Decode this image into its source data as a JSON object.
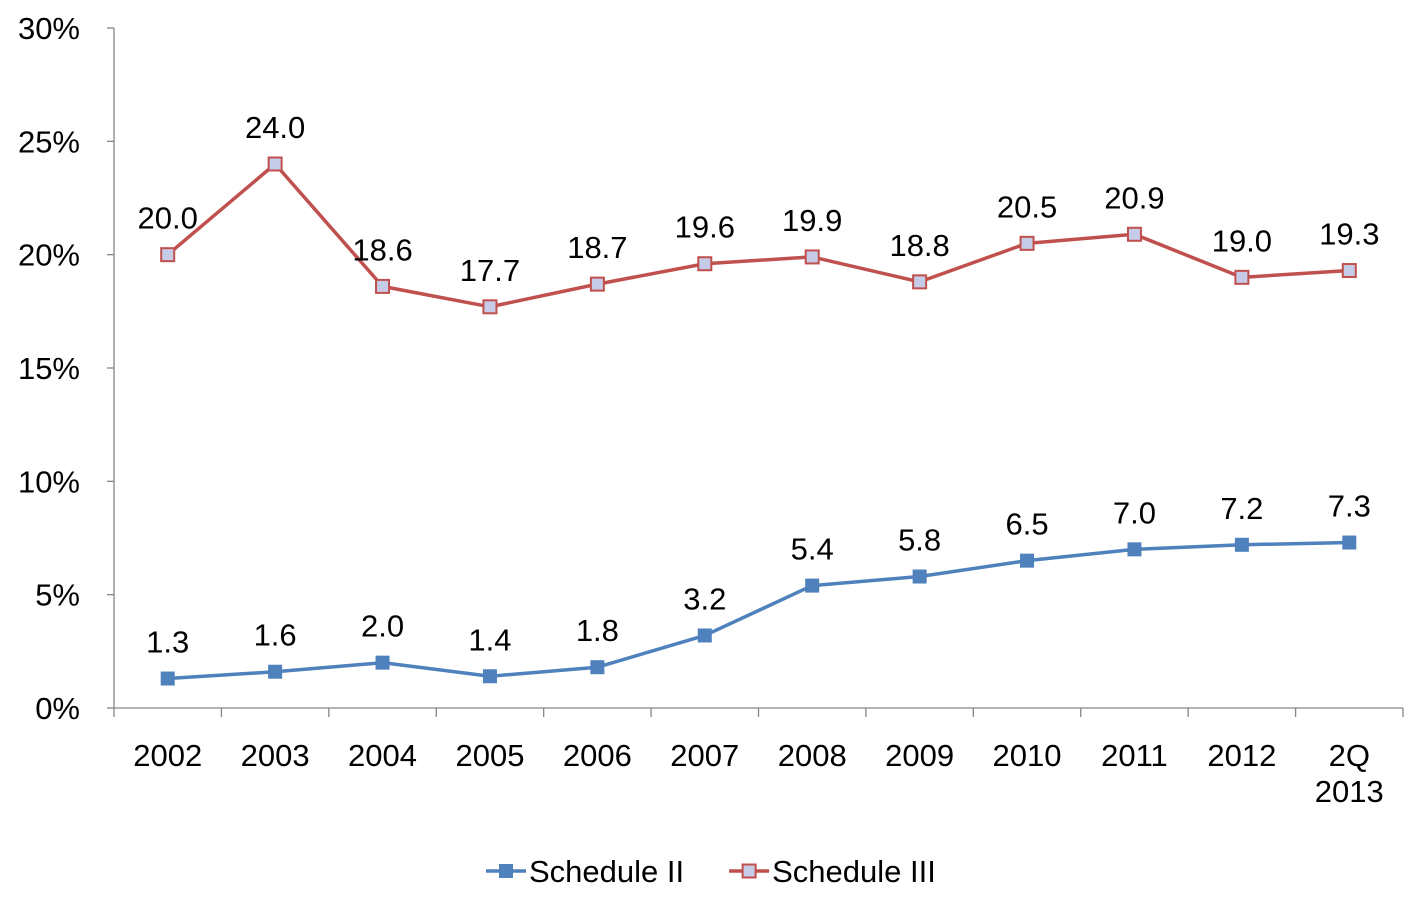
{
  "chart_data": {
    "type": "line",
    "title": "",
    "xlabel": "",
    "ylabel": "",
    "categories": [
      [
        "2002"
      ],
      [
        "2003"
      ],
      [
        "2004"
      ],
      [
        "2005"
      ],
      [
        "2006"
      ],
      [
        "2007"
      ],
      [
        "2008"
      ],
      [
        "2009"
      ],
      [
        "2010"
      ],
      [
        "2011"
      ],
      [
        "2012"
      ],
      [
        "2Q",
        "2013"
      ]
    ],
    "ylim": [
      0,
      30
    ],
    "yticks": [
      0,
      5,
      10,
      15,
      20,
      25,
      30
    ],
    "ytick_labels": [
      "0%",
      "5%",
      "10%",
      "15%",
      "20%",
      "25%",
      "30%"
    ],
    "grid": false,
    "legend_position": "bottom",
    "series": [
      {
        "name": "Schedule II",
        "color": "#4F81BD",
        "marker": "filled-square",
        "values": [
          1.3,
          1.6,
          2.0,
          1.4,
          1.8,
          3.2,
          5.4,
          5.8,
          6.5,
          7.0,
          7.2,
          7.3
        ],
        "labels": [
          "1.3",
          "1.6",
          "2.0",
          "1.4",
          "1.8",
          "3.2",
          "5.4",
          "5.8",
          "6.5",
          "7.0",
          "7.2",
          "7.3"
        ]
      },
      {
        "name": "Schedule III",
        "color": "#C0504D",
        "marker_fill": "#C6CCE8",
        "marker": "hollow-square",
        "values": [
          20.0,
          24.0,
          18.6,
          17.7,
          18.7,
          19.6,
          19.9,
          18.8,
          20.5,
          20.9,
          19.0,
          19.3
        ],
        "labels": [
          "20.0",
          "24.0",
          "18.6",
          "17.7",
          "18.7",
          "19.6",
          "19.9",
          "18.8",
          "20.5",
          "20.9",
          "19.0",
          "19.3"
        ]
      }
    ]
  }
}
